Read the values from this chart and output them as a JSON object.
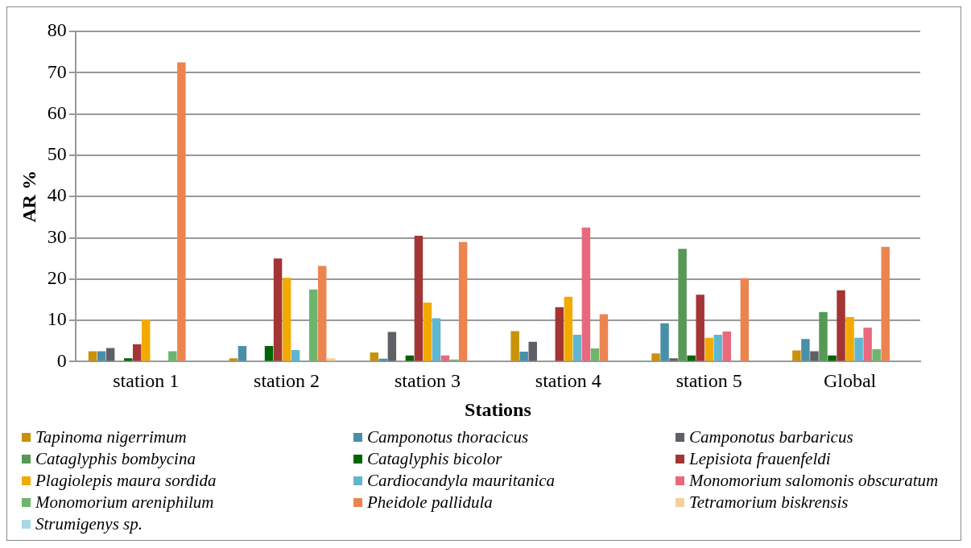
{
  "chart_data": {
    "type": "bar",
    "xlabel": "Stations",
    "ylabel": "AR %",
    "categories": [
      "station 1",
      "station 2",
      "station 3",
      "station 4",
      "station 5",
      "Global"
    ],
    "ylim": [
      0,
      80
    ],
    "yticks": [
      0,
      10,
      20,
      30,
      40,
      50,
      60,
      70,
      80
    ],
    "grid": "y",
    "legend": "bottom",
    "series": [
      {
        "name": "Tapinoma nigerrimum",
        "color": "#c8920a",
        "values": [
          2.5,
          0.8,
          2.2,
          7.4,
          2,
          2.7
        ]
      },
      {
        "name": "Camponotus thoracicus",
        "color": "#4a8fa8",
        "values": [
          2.5,
          3.8,
          0.7,
          2.4,
          9.3,
          5.5
        ]
      },
      {
        "name": "Camponotus barbaricus",
        "color": "#5f5f66",
        "values": [
          3.3,
          0,
          7.2,
          4.8,
          0.8,
          2.5
        ]
      },
      {
        "name": "Cataglyphis bombycina",
        "color": "#559955",
        "values": [
          0,
          0,
          0,
          0,
          27.3,
          12
        ]
      },
      {
        "name": "Cataglyphis bicolor",
        "color": "#006400",
        "values": [
          0.8,
          3.8,
          1.5,
          0,
          1.5,
          1.5
        ]
      },
      {
        "name": "Lepisiota frauenfeldi",
        "color": "#a33535",
        "values": [
          4.2,
          25,
          30.5,
          13.2,
          16.2,
          17.3
        ]
      },
      {
        "name": "Plagiolepis maura sordida",
        "color": "#f2aa00",
        "values": [
          10.2,
          20.3,
          14.3,
          15.7,
          5.8,
          10.8
        ]
      },
      {
        "name": "Cardiocandyla mauritanica",
        "color": "#5fb6d0",
        "values": [
          0,
          2.8,
          10.5,
          6.5,
          6.5,
          5.8
        ]
      },
      {
        "name": "Monomorium salomonis obscuratum",
        "color": "#e8687d",
        "values": [
          0,
          0,
          1.5,
          32.5,
          7.3,
          8.2
        ]
      },
      {
        "name": "Monomorium areniphilum",
        "color": "#6db56d",
        "values": [
          2.5,
          17.5,
          0.5,
          3.2,
          0,
          3
        ]
      },
      {
        "name": "Pheidole pallidula",
        "color": "#ec8450",
        "values": [
          72.5,
          23.2,
          29,
          11.5,
          20.2,
          27.8
        ]
      },
      {
        "name": "Tetramorium biskrensis",
        "color": "#f6cf9a",
        "values": [
          0,
          0.8,
          0,
          0,
          0,
          0
        ]
      },
      {
        "name": "Strumigenys sp.",
        "color": "#a9d7e6",
        "values": [
          0,
          0,
          0,
          0,
          0,
          0
        ]
      }
    ]
  }
}
